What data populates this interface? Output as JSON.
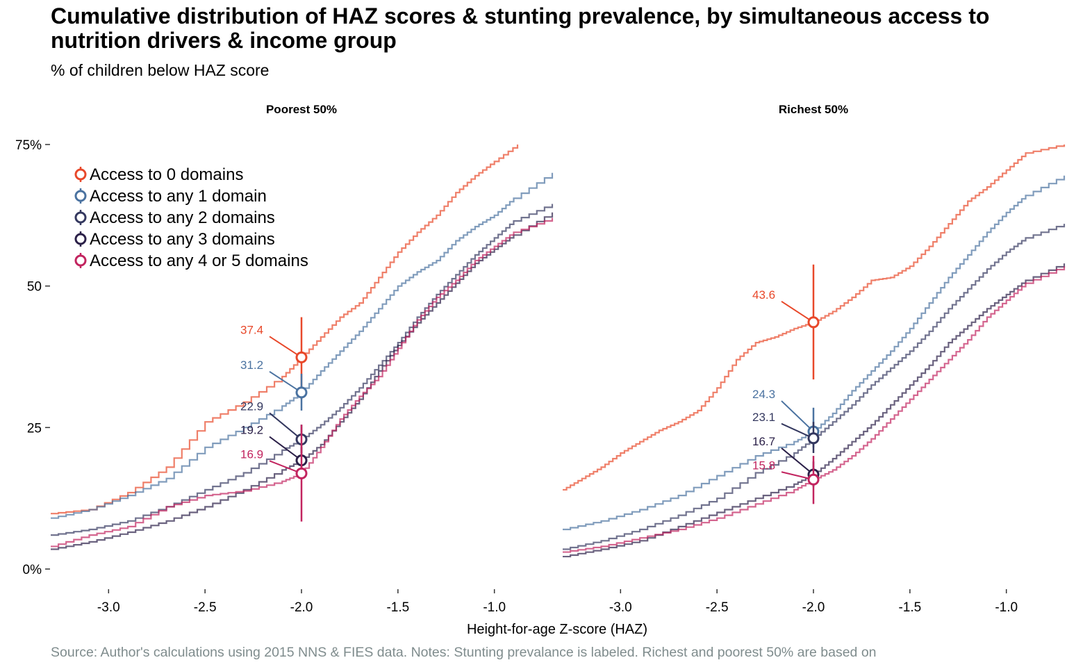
{
  "title": "Cumulative distribution of HAZ scores & stunting prevalence, by simultaneous access to nutrition drivers & income group",
  "subtitle": "% of children below HAZ score",
  "source": "Source: Author's calculations using 2015 NNS & FIES data. Notes: Stunting prevalance is labeled. Richest and poorest 50% are based on",
  "colors": {
    "d0": "#e8482a",
    "d1": "#4a72a0",
    "d2": "#34385f",
    "d3": "#2b2048",
    "d45": "#c2245f"
  },
  "chart_data": {
    "type": "line",
    "xlabel": "Height-for-age Z-score (HAZ)",
    "ylabel": "",
    "xlim": [
      -3.3,
      -0.7
    ],
    "ylim": [
      0,
      75
    ],
    "x_ticks": [
      "-3.0",
      "-2.5",
      "-2.0",
      "-1.5",
      "-1.0"
    ],
    "x_tick_values": [
      -3.0,
      -2.5,
      -2.0,
      -1.5,
      -1.0
    ],
    "y_ticks": [
      "0%",
      "25",
      "50",
      "75%"
    ],
    "y_tick_values": [
      0,
      25,
      50,
      75
    ],
    "grid": false,
    "legend_position": "top-left",
    "legend": [
      {
        "key": "d0",
        "label": "Access to 0 domains"
      },
      {
        "key": "d1",
        "label": "Access to any 1 domain"
      },
      {
        "key": "d2",
        "label": "Access to any 2 domains"
      },
      {
        "key": "d3",
        "label": "Access to any 3 domains"
      },
      {
        "key": "d45",
        "label": "Access to any 4 or 5 domains"
      }
    ],
    "panels": [
      {
        "title": "Poorest 50%",
        "stunting": [
          {
            "key": "d0",
            "label": "37.4",
            "value": 37.4,
            "ci": [
              30,
              44.5
            ]
          },
          {
            "key": "d1",
            "label": "31.2",
            "value": 31.2,
            "ci": [
              28,
              34.5
            ]
          },
          {
            "key": "d2",
            "label": "22.9",
            "value": 22.9,
            "ci": [
              20.5,
              25.5
            ]
          },
          {
            "key": "d3",
            "label": "19.2",
            "value": 19.2,
            "ci": [
              17,
              21.5
            ]
          },
          {
            "key": "d45",
            "label": "16.9",
            "value": 16.9,
            "ci": [
              8.4,
              25.5
            ]
          }
        ],
        "series": [
          {
            "key": "d0",
            "values": [
              [
                -3.3,
                9.8
              ],
              [
                -3.1,
                10.5
              ],
              [
                -2.9,
                13.5
              ],
              [
                -2.7,
                18
              ],
              [
                -2.5,
                26
              ],
              [
                -2.3,
                29.5
              ],
              [
                -2.1,
                34
              ],
              [
                -2.0,
                37.4
              ],
              [
                -1.9,
                41
              ],
              [
                -1.8,
                44.5
              ],
              [
                -1.7,
                47
              ],
              [
                -1.6,
                51.5
              ],
              [
                -1.5,
                56
              ],
              [
                -1.4,
                59.5
              ],
              [
                -1.3,
                62.5
              ],
              [
                -1.2,
                66.5
              ],
              [
                -1.1,
                69.5
              ],
              [
                -1.0,
                72
              ],
              [
                -0.88,
                75
              ]
            ]
          },
          {
            "key": "d1",
            "values": [
              [
                -3.3,
                9.0
              ],
              [
                -3.1,
                10.5
              ],
              [
                -2.9,
                13
              ],
              [
                -2.7,
                16
              ],
              [
                -2.5,
                21.5
              ],
              [
                -2.3,
                25
              ],
              [
                -2.1,
                28.8
              ],
              [
                -2.0,
                31.2
              ],
              [
                -1.9,
                35
              ],
              [
                -1.8,
                38.5
              ],
              [
                -1.7,
                42
              ],
              [
                -1.6,
                46
              ],
              [
                -1.5,
                50
              ],
              [
                -1.4,
                52.5
              ],
              [
                -1.3,
                54.5
              ],
              [
                -1.2,
                58
              ],
              [
                -1.1,
                60.5
              ],
              [
                -1.0,
                62.5
              ],
              [
                -0.9,
                65.5
              ],
              [
                -0.7,
                70
              ]
            ]
          },
          {
            "key": "d2",
            "values": [
              [
                -3.3,
                6.0
              ],
              [
                -3.1,
                7.0
              ],
              [
                -2.9,
                8.5
              ],
              [
                -2.7,
                11
              ],
              [
                -2.5,
                14
              ],
              [
                -2.3,
                17
              ],
              [
                -2.1,
                21
              ],
              [
                -2.0,
                22.9
              ],
              [
                -1.9,
                25.5
              ],
              [
                -1.8,
                28.5
              ],
              [
                -1.7,
                32
              ],
              [
                -1.6,
                36
              ],
              [
                -1.5,
                40
              ],
              [
                -1.4,
                44.5
              ],
              [
                -1.3,
                48.5
              ],
              [
                -1.2,
                52
              ],
              [
                -1.1,
                55.5
              ],
              [
                -1.0,
                58.5
              ],
              [
                -0.9,
                61.5
              ],
              [
                -0.7,
                64.5
              ]
            ]
          },
          {
            "key": "d3",
            "values": [
              [
                -3.3,
                3.5
              ],
              [
                -3.1,
                4.8
              ],
              [
                -2.9,
                6.5
              ],
              [
                -2.7,
                8.5
              ],
              [
                -2.5,
                11
              ],
              [
                -2.3,
                14
              ],
              [
                -2.1,
                17.5
              ],
              [
                -2.0,
                19.2
              ],
              [
                -1.9,
                22
              ],
              [
                -1.8,
                26
              ],
              [
                -1.7,
                30
              ],
              [
                -1.6,
                35
              ],
              [
                -1.5,
                39.5
              ],
              [
                -1.4,
                43.5
              ],
              [
                -1.3,
                47
              ],
              [
                -1.2,
                50.5
              ],
              [
                -1.1,
                54
              ],
              [
                -1.0,
                56.5
              ],
              [
                -0.9,
                59
              ],
              [
                -0.7,
                63
              ]
            ]
          },
          {
            "key": "d45",
            "values": [
              [
                -3.3,
                4.0
              ],
              [
                -3.1,
                6.0
              ],
              [
                -2.9,
                7.5
              ],
              [
                -2.7,
                11
              ],
              [
                -2.5,
                13
              ],
              [
                -2.3,
                13.8
              ],
              [
                -2.1,
                15.5
              ],
              [
                -2.0,
                16.9
              ],
              [
                -1.9,
                21.5
              ],
              [
                -1.8,
                26.5
              ],
              [
                -1.7,
                30.5
              ],
              [
                -1.6,
                34
              ],
              [
                -1.5,
                39
              ],
              [
                -1.4,
                44
              ],
              [
                -1.3,
                48
              ],
              [
                -1.2,
                51
              ],
              [
                -1.1,
                54.5
              ],
              [
                -1.0,
                57
              ],
              [
                -0.9,
                59.5
              ],
              [
                -0.7,
                62
              ]
            ]
          }
        ]
      },
      {
        "title": "Richest 50%",
        "stunting": [
          {
            "key": "d0",
            "label": "43.6",
            "value": 43.6,
            "ci": [
              33.5,
              53.8
            ]
          },
          {
            "key": "d1",
            "label": "24.3",
            "value": 24.3,
            "ci": [
              21.5,
              28.5
            ]
          },
          {
            "key": "d2",
            "label": "23.1",
            "value": 23.1,
            "ci": [
              20.5,
              26
            ]
          },
          {
            "key": "d3",
            "label": "16.7",
            "value": 16.7,
            "ci": [
              14.5,
              19
            ]
          },
          {
            "key": "d45",
            "label": "15.8",
            "value": 15.8,
            "ci": [
              11.5,
              20
            ]
          }
        ],
        "series": [
          {
            "key": "d0",
            "values": [
              [
                -3.3,
                14.0
              ],
              [
                -3.2,
                16
              ],
              [
                -3.1,
                18
              ],
              [
                -3.0,
                20.5
              ],
              [
                -2.9,
                22.5
              ],
              [
                -2.8,
                24.5
              ],
              [
                -2.7,
                26
              ],
              [
                -2.6,
                28
              ],
              [
                -2.5,
                32
              ],
              [
                -2.4,
                37
              ],
              [
                -2.3,
                40
              ],
              [
                -2.2,
                41
              ],
              [
                -2.1,
                42.5
              ],
              [
                -2.0,
                43.6
              ],
              [
                -1.9,
                45.5
              ],
              [
                -1.8,
                48
              ],
              [
                -1.7,
                51
              ],
              [
                -1.6,
                51.5
              ],
              [
                -1.5,
                53.5
              ],
              [
                -1.4,
                57
              ],
              [
                -1.3,
                61
              ],
              [
                -1.2,
                65
              ],
              [
                -1.1,
                67.5
              ],
              [
                -1.0,
                70.5
              ],
              [
                -0.9,
                73.5
              ],
              [
                -0.7,
                75
              ]
            ]
          },
          {
            "key": "d1",
            "values": [
              [
                -3.3,
                7.0
              ],
              [
                -3.1,
                8.5
              ],
              [
                -2.9,
                10.5
              ],
              [
                -2.7,
                13
              ],
              [
                -2.5,
                16.5
              ],
              [
                -2.3,
                20
              ],
              [
                -2.1,
                22.5
              ],
              [
                -2.0,
                24.3
              ],
              [
                -1.9,
                27.5
              ],
              [
                -1.8,
                31.5
              ],
              [
                -1.7,
                35
              ],
              [
                -1.6,
                38.5
              ],
              [
                -1.5,
                42.5
              ],
              [
                -1.4,
                47
              ],
              [
                -1.3,
                51.5
              ],
              [
                -1.2,
                55.5
              ],
              [
                -1.1,
                59.5
              ],
              [
                -1.0,
                63
              ],
              [
                -0.9,
                66
              ],
              [
                -0.7,
                69.5
              ]
            ]
          },
          {
            "key": "d2",
            "values": [
              [
                -3.3,
                3.5
              ],
              [
                -3.1,
                5.0
              ],
              [
                -2.9,
                7
              ],
              [
                -2.7,
                9.5
              ],
              [
                -2.5,
                12.5
              ],
              [
                -2.3,
                17
              ],
              [
                -2.1,
                20.5
              ],
              [
                -2.0,
                23.1
              ],
              [
                -1.9,
                26
              ],
              [
                -1.8,
                29
              ],
              [
                -1.7,
                32.5
              ],
              [
                -1.6,
                35.5
              ],
              [
                -1.5,
                38.5
              ],
              [
                -1.4,
                42
              ],
              [
                -1.3,
                46
              ],
              [
                -1.2,
                49.5
              ],
              [
                -1.1,
                53
              ],
              [
                -1.0,
                56
              ],
              [
                -0.9,
                58.5
              ],
              [
                -0.7,
                61
              ]
            ]
          },
          {
            "key": "d3",
            "values": [
              [
                -3.3,
                2.2
              ],
              [
                -3.1,
                3.5
              ],
              [
                -2.9,
                5
              ],
              [
                -2.7,
                7.5
              ],
              [
                -2.5,
                10
              ],
              [
                -2.3,
                12.5
              ],
              [
                -2.1,
                15
              ],
              [
                -2.0,
                16.7
              ],
              [
                -1.9,
                19.5
              ],
              [
                -1.8,
                22.5
              ],
              [
                -1.7,
                25.5
              ],
              [
                -1.6,
                29
              ],
              [
                -1.5,
                32.5
              ],
              [
                -1.4,
                36
              ],
              [
                -1.3,
                40
              ],
              [
                -1.2,
                43
              ],
              [
                -1.1,
                46
              ],
              [
                -1.0,
                48.5
              ],
              [
                -0.9,
                51
              ],
              [
                -0.7,
                54
              ]
            ]
          },
          {
            "key": "d45",
            "values": [
              [
                -3.3,
                3.0
              ],
              [
                -3.1,
                4.0
              ],
              [
                -2.9,
                5.5
              ],
              [
                -2.7,
                7
              ],
              [
                -2.5,
                9
              ],
              [
                -2.3,
                11.5
              ],
              [
                -2.1,
                14
              ],
              [
                -2.0,
                15.8
              ],
              [
                -1.9,
                17.5
              ],
              [
                -1.8,
                20
              ],
              [
                -1.7,
                23
              ],
              [
                -1.6,
                26.5
              ],
              [
                -1.5,
                30
              ],
              [
                -1.4,
                33.5
              ],
              [
                -1.3,
                37
              ],
              [
                -1.2,
                40.5
              ],
              [
                -1.1,
                44.5
              ],
              [
                -1.0,
                47.5
              ],
              [
                -0.9,
                50.5
              ],
              [
                -0.7,
                53.5
              ]
            ]
          }
        ]
      }
    ]
  }
}
